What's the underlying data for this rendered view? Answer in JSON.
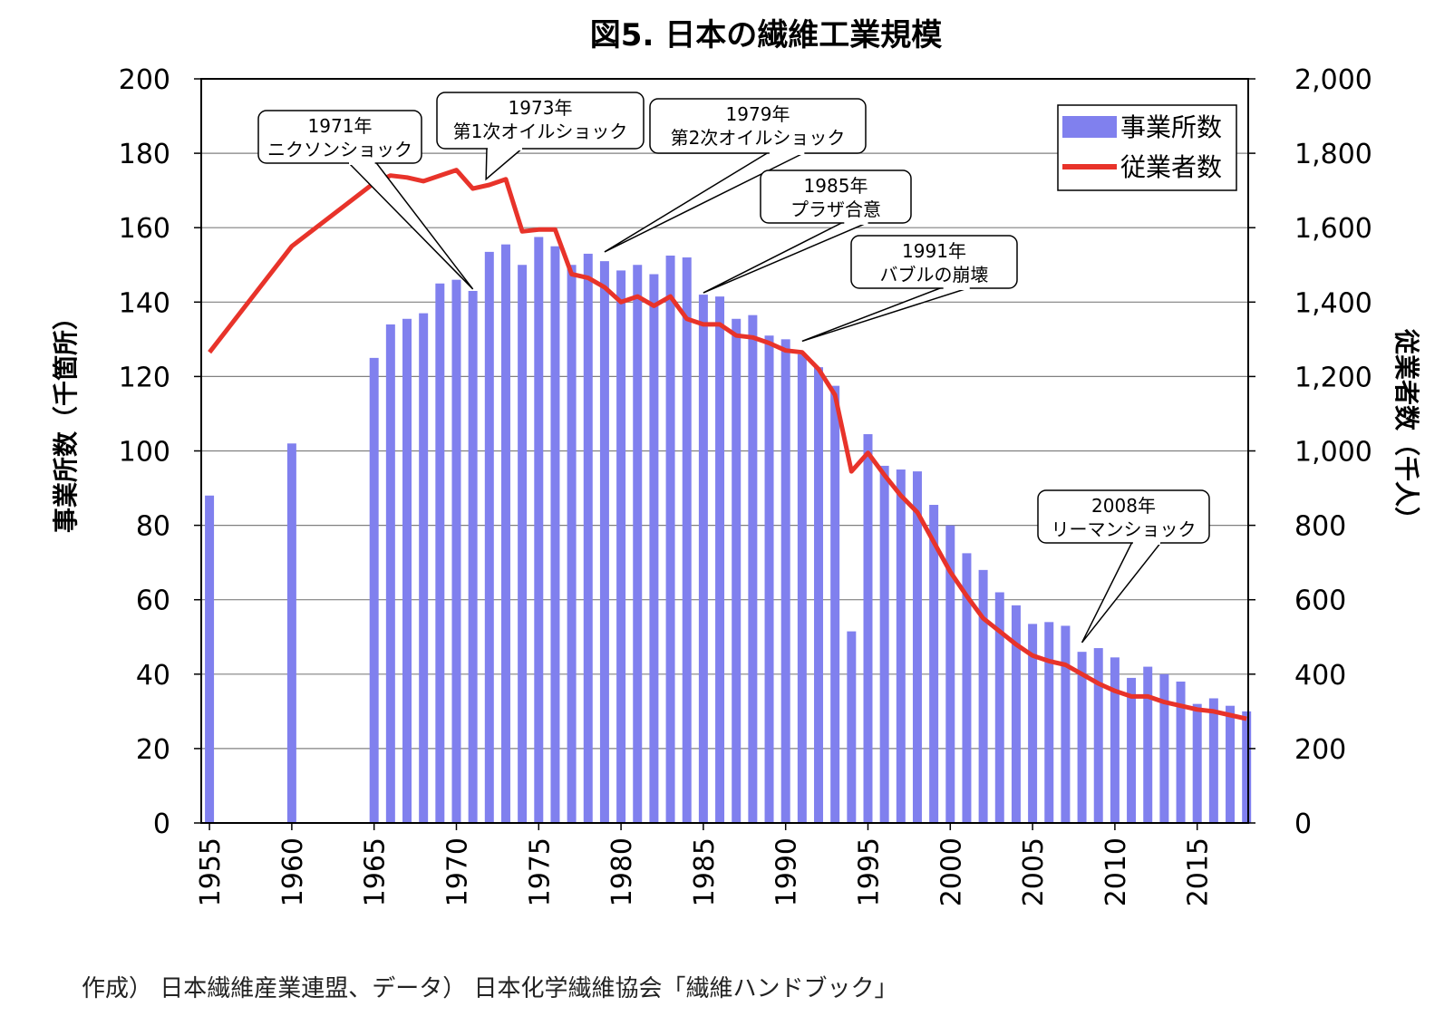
{
  "title": "図5. 日本の繊維工業規模",
  "source": "作成） 日本繊維産業連盟、データ） 日本化学繊維協会「繊維ハンドブック」",
  "colors": {
    "bars": "#8080ee",
    "line": "#e8332a",
    "grid": "#808080"
  },
  "chart_data": {
    "type": "bar",
    "xlim": [
      1955,
      2018
    ],
    "x_ticks": [
      "1955",
      "1960",
      "1965",
      "1970",
      "1975",
      "1980",
      "1985",
      "1990",
      "1995",
      "2000",
      "2005",
      "2010",
      "2015"
    ],
    "y_left": {
      "label": "事業所数（千箇所）",
      "lim": [
        0,
        200
      ],
      "ticks": [
        "0",
        "20",
        "40",
        "60",
        "80",
        "100",
        "120",
        "140",
        "160",
        "180",
        "200"
      ]
    },
    "y_right": {
      "label": "従業者数（千人）",
      "lim": [
        0,
        2000
      ],
      "ticks": [
        "0",
        "200",
        "400",
        "600",
        "800",
        "1,000",
        "1,200",
        "1,400",
        "1,600",
        "1,800",
        "2,000"
      ]
    },
    "grid": "horizontal",
    "legend_position": "top-right",
    "series": [
      {
        "name": "事業所数",
        "type": "bar",
        "axis": "left",
        "points": [
          [
            1955,
            88
          ],
          [
            1960,
            102
          ],
          [
            1965,
            125
          ],
          [
            1966,
            134
          ],
          [
            1967,
            135.5
          ],
          [
            1968,
            137
          ],
          [
            1969,
            145
          ],
          [
            1970,
            146
          ],
          [
            1971,
            143
          ],
          [
            1972,
            153.5
          ],
          [
            1973,
            155.5
          ],
          [
            1974,
            150
          ],
          [
            1975,
            157.5
          ],
          [
            1976,
            155
          ],
          [
            1977,
            150
          ],
          [
            1978,
            153
          ],
          [
            1979,
            151
          ],
          [
            1980,
            148.5
          ],
          [
            1981,
            150
          ],
          [
            1982,
            147.5
          ],
          [
            1983,
            152.5
          ],
          [
            1984,
            152
          ],
          [
            1985,
            142
          ],
          [
            1986,
            141.5
          ],
          [
            1987,
            135.5
          ],
          [
            1988,
            136.5
          ],
          [
            1989,
            131
          ],
          [
            1990,
            130
          ],
          [
            1991,
            126
          ],
          [
            1992,
            122.5
          ],
          [
            1993,
            117.5
          ],
          [
            1994,
            51.5
          ],
          [
            1995,
            104.5
          ],
          [
            1996,
            96
          ],
          [
            1997,
            95
          ],
          [
            1998,
            94.5
          ],
          [
            1999,
            85.5
          ],
          [
            2000,
            80
          ],
          [
            2001,
            72.5
          ],
          [
            2002,
            68
          ],
          [
            2003,
            62
          ],
          [
            2004,
            58.5
          ],
          [
            2005,
            53.5
          ],
          [
            2006,
            54
          ],
          [
            2007,
            53
          ],
          [
            2008,
            46
          ],
          [
            2009,
            47
          ],
          [
            2010,
            44.5
          ],
          [
            2011,
            39
          ],
          [
            2012,
            42
          ],
          [
            2013,
            40
          ],
          [
            2014,
            38
          ],
          [
            2015,
            32
          ],
          [
            2016,
            33.5
          ],
          [
            2017,
            31.5
          ],
          [
            2018,
            30
          ]
        ]
      },
      {
        "name": "従業者数",
        "type": "line",
        "axis": "right",
        "points": [
          [
            1955,
            1265
          ],
          [
            1960,
            1550
          ],
          [
            1965,
            1720
          ],
          [
            1966,
            1740
          ],
          [
            1967,
            1735
          ],
          [
            1968,
            1725
          ],
          [
            1969,
            1740
          ],
          [
            1970,
            1755
          ],
          [
            1971,
            1705
          ],
          [
            1972,
            1715
          ],
          [
            1973,
            1730
          ],
          [
            1974,
            1590
          ],
          [
            1975,
            1595
          ],
          [
            1976,
            1595
          ],
          [
            1977,
            1475
          ],
          [
            1978,
            1465
          ],
          [
            1979,
            1440
          ],
          [
            1980,
            1400
          ],
          [
            1981,
            1415
          ],
          [
            1982,
            1390
          ],
          [
            1983,
            1415
          ],
          [
            1984,
            1355
          ],
          [
            1985,
            1340
          ],
          [
            1986,
            1340
          ],
          [
            1987,
            1310
          ],
          [
            1988,
            1305
          ],
          [
            1989,
            1290
          ],
          [
            1990,
            1270
          ],
          [
            1991,
            1265
          ],
          [
            1992,
            1220
          ],
          [
            1993,
            1150
          ],
          [
            1994,
            945
          ],
          [
            1995,
            995
          ],
          [
            1996,
            935
          ],
          [
            1997,
            880
          ],
          [
            1998,
            835
          ],
          [
            1999,
            755
          ],
          [
            2000,
            675
          ],
          [
            2001,
            610
          ],
          [
            2002,
            550
          ],
          [
            2003,
            515
          ],
          [
            2004,
            480
          ],
          [
            2005,
            450
          ],
          [
            2006,
            435
          ],
          [
            2007,
            425
          ],
          [
            2008,
            400
          ],
          [
            2009,
            375
          ],
          [
            2010,
            355
          ],
          [
            2011,
            340
          ],
          [
            2012,
            340
          ],
          [
            2013,
            325
          ],
          [
            2014,
            315
          ],
          [
            2015,
            305
          ],
          [
            2016,
            300
          ],
          [
            2017,
            290
          ],
          [
            2018,
            280
          ]
        ]
      }
    ],
    "annotations": [
      {
        "lines": [
          "1971年",
          "ニクソンショック"
        ],
        "x": 1971
      },
      {
        "lines": [
          "1973年",
          "第1次オイルショック"
        ],
        "x": 1973
      },
      {
        "lines": [
          "1979年",
          "第2次オイルショック"
        ],
        "x": 1979
      },
      {
        "lines": [
          "1985年",
          "プラザ合意"
        ],
        "x": 1985
      },
      {
        "lines": [
          "1991年",
          "バブルの崩壊"
        ],
        "x": 1991
      },
      {
        "lines": [
          "2008年",
          "リーマンショック"
        ],
        "x": 2008
      }
    ]
  }
}
